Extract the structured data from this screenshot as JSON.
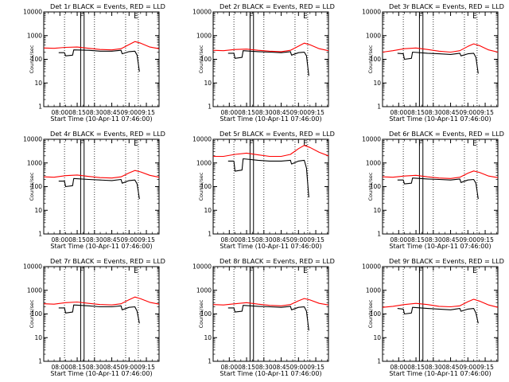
{
  "chart_data": [
    {
      "type": "line",
      "title": "Det 1r BLACK = Events, RED = LLD",
      "xlabel": "Start Time (10-Apr-11 07:46:00)",
      "ylabel": "Counts/sec",
      "yscale": "log",
      "ylim": [
        1,
        10000
      ],
      "xlim": [
        "07:46",
        "09:26"
      ],
      "xticks": [
        "08:00",
        "08:15",
        "08:30",
        "08:45",
        "09:00",
        "09:15"
      ],
      "yticks": [
        "1",
        "10",
        "100",
        "1000",
        "10000"
      ],
      "markers": [
        {
          "label": "F",
          "time": "08:19"
        },
        {
          "label": "E",
          "time": "09:06"
        }
      ],
      "vlines_solid": [
        "08:18",
        "08:21"
      ],
      "vlines_dotted": [
        "08:04",
        "08:30",
        "08:57",
        "09:08"
      ],
      "series": [
        {
          "color": "#ff0000",
          "x": [
            "07:46",
            "07:55",
            "08:05",
            "08:15",
            "08:25",
            "08:35",
            "08:45",
            "08:53",
            "09:00",
            "09:05",
            "09:10",
            "09:18",
            "09:26"
          ],
          "y": [
            300,
            290,
            320,
            330,
            290,
            260,
            250,
            280,
            420,
            560,
            480,
            330,
            280
          ]
        },
        {
          "color": "#000000",
          "x": [
            "07:59",
            "08:04",
            "08:05",
            "08:11",
            "08:12",
            "08:25",
            "08:35",
            "08:45",
            "08:53",
            "08:54",
            "09:00",
            "09:05",
            "09:07",
            "09:09"
          ],
          "y": [
            190,
            190,
            140,
            150,
            250,
            240,
            220,
            220,
            240,
            170,
            210,
            220,
            150,
            30
          ]
        }
      ]
    },
    {
      "type": "line",
      "title": "Det 2r BLACK = Events, RED = LLD",
      "xlabel": "Start Time (10-Apr-11 07:46:00)",
      "ylabel": "Counts/sec",
      "yscale": "log",
      "ylim": [
        1,
        10000
      ],
      "xlim": [
        "07:46",
        "09:26"
      ],
      "xticks": [
        "08:00",
        "08:15",
        "08:30",
        "08:45",
        "09:00",
        "09:15"
      ],
      "yticks": [
        "1",
        "10",
        "100",
        "1000",
        "10000"
      ],
      "markers": [
        {
          "label": "F",
          "time": "08:19"
        },
        {
          "label": "E",
          "time": "09:06"
        }
      ],
      "vlines_solid": [
        "08:18",
        "08:21"
      ],
      "vlines_dotted": [
        "08:04",
        "08:30",
        "08:57",
        "09:08"
      ],
      "series": [
        {
          "color": "#ff0000",
          "x": [
            "07:46",
            "07:55",
            "08:05",
            "08:15",
            "08:25",
            "08:35",
            "08:45",
            "08:53",
            "09:00",
            "09:05",
            "09:10",
            "09:18",
            "09:26"
          ],
          "y": [
            240,
            230,
            260,
            270,
            240,
            220,
            210,
            240,
            360,
            480,
            410,
            280,
            230
          ]
        },
        {
          "color": "#000000",
          "x": [
            "07:59",
            "08:04",
            "08:05",
            "08:11",
            "08:12",
            "08:25",
            "08:35",
            "08:45",
            "08:53",
            "08:54",
            "09:00",
            "09:05",
            "09:07",
            "09:09"
          ],
          "y": [
            180,
            180,
            110,
            120,
            230,
            210,
            200,
            190,
            210,
            150,
            190,
            200,
            140,
            20
          ]
        }
      ]
    },
    {
      "type": "line",
      "title": "Det 3r BLACK = Events, RED = LLD",
      "xlabel": "Start Time (10-Apr-11 07:46:00)",
      "ylabel": "Counts/sec",
      "yscale": "log",
      "ylim": [
        1,
        10000
      ],
      "xlim": [
        "07:46",
        "09:26"
      ],
      "xticks": [
        "08:00",
        "08:15",
        "08:30",
        "08:45",
        "09:00",
        "09:15"
      ],
      "yticks": [
        "1",
        "10",
        "100",
        "1000",
        "10000"
      ],
      "markers": [
        {
          "label": "F",
          "time": "08:19"
        },
        {
          "label": "E",
          "time": "09:06"
        }
      ],
      "vlines_solid": [
        "08:18",
        "08:21"
      ],
      "vlines_dotted": [
        "08:04",
        "08:30",
        "08:57",
        "09:08"
      ],
      "series": [
        {
          "color": "#ff0000",
          "x": [
            "07:46",
            "07:55",
            "08:05",
            "08:15",
            "08:25",
            "08:35",
            "08:45",
            "08:53",
            "09:00",
            "09:05",
            "09:10",
            "09:18",
            "09:26"
          ],
          "y": [
            200,
            230,
            280,
            300,
            260,
            220,
            200,
            230,
            350,
            450,
            380,
            250,
            200
          ]
        },
        {
          "color": "#000000",
          "x": [
            "07:59",
            "08:04",
            "08:05",
            "08:11",
            "08:12",
            "08:25",
            "08:35",
            "08:45",
            "08:53",
            "08:54",
            "09:00",
            "09:05",
            "09:07",
            "09:09"
          ],
          "y": [
            180,
            170,
            100,
            110,
            200,
            180,
            170,
            160,
            180,
            140,
            170,
            180,
            120,
            25
          ]
        }
      ]
    },
    {
      "type": "line",
      "title": "Det 4r BLACK = Events, RED = LLD",
      "xlabel": "Start Time (10-Apr-11 07:46:00)",
      "ylabel": "Counts/sec",
      "yscale": "log",
      "ylim": [
        1,
        10000
      ],
      "xlim": [
        "07:46",
        "09:26"
      ],
      "xticks": [
        "08:00",
        "08:15",
        "08:30",
        "08:45",
        "09:00",
        "09:15"
      ],
      "yticks": [
        "1",
        "10",
        "100",
        "1000",
        "10000"
      ],
      "markers": [
        {
          "label": "F",
          "time": "08:19"
        },
        {
          "label": "E",
          "time": "09:06"
        }
      ],
      "vlines_solid": [
        "08:18",
        "08:21"
      ],
      "vlines_dotted": [
        "08:04",
        "08:30",
        "08:57",
        "09:08"
      ],
      "series": [
        {
          "color": "#ff0000",
          "x": [
            "07:46",
            "07:55",
            "08:05",
            "08:15",
            "08:25",
            "08:35",
            "08:45",
            "08:53",
            "09:00",
            "09:05",
            "09:10",
            "09:18",
            "09:26"
          ],
          "y": [
            260,
            250,
            290,
            310,
            270,
            240,
            230,
            260,
            380,
            480,
            420,
            300,
            250
          ]
        },
        {
          "color": "#000000",
          "x": [
            "07:59",
            "08:04",
            "08:05",
            "08:11",
            "08:12",
            "08:25",
            "08:35",
            "08:45",
            "08:53",
            "08:54",
            "09:00",
            "09:05",
            "09:07",
            "09:09"
          ],
          "y": [
            170,
            170,
            100,
            110,
            220,
            200,
            190,
            180,
            200,
            140,
            180,
            190,
            130,
            30
          ]
        }
      ]
    },
    {
      "type": "line",
      "title": "Det 5r BLACK = Events, RED = LLD",
      "xlabel": "Start Time (10-Apr-11 07:46:00)",
      "ylabel": "Counts/sec",
      "yscale": "log",
      "ylim": [
        1,
        10000
      ],
      "xlim": [
        "07:46",
        "09:26"
      ],
      "xticks": [
        "08:00",
        "08:15",
        "08:30",
        "08:45",
        "09:00",
        "09:15"
      ],
      "yticks": [
        "1",
        "10",
        "100",
        "1000",
        "10000"
      ],
      "markers": [
        {
          "label": "F",
          "time": "08:19"
        },
        {
          "label": "E",
          "time": "09:06"
        }
      ],
      "vlines_solid": [
        "08:18",
        "08:21"
      ],
      "vlines_dotted": [
        "08:04",
        "08:30",
        "08:57",
        "09:08"
      ],
      "series": [
        {
          "color": "#ff0000",
          "x": [
            "07:46",
            "07:55",
            "08:05",
            "08:15",
            "08:25",
            "08:35",
            "08:45",
            "08:53",
            "09:00",
            "09:05",
            "09:10",
            "09:18",
            "09:26"
          ],
          "y": [
            1900,
            1900,
            2300,
            2600,
            2200,
            1900,
            1900,
            2300,
            4000,
            5500,
            4500,
            2800,
            2000
          ]
        },
        {
          "color": "#000000",
          "x": [
            "07:59",
            "08:04",
            "08:05",
            "08:11",
            "08:12",
            "08:25",
            "08:35",
            "08:45",
            "08:53",
            "08:54",
            "09:00",
            "09:05",
            "09:07",
            "09:09"
          ],
          "y": [
            1200,
            1200,
            450,
            500,
            1500,
            1300,
            1200,
            1200,
            1300,
            900,
            1200,
            1300,
            600,
            35
          ]
        }
      ]
    },
    {
      "type": "line",
      "title": "Det 6r BLACK = Events, RED = LLD",
      "xlabel": "Start Time (10-Apr-11 07:46:00)",
      "ylabel": "Counts/sec",
      "yscale": "log",
      "ylim": [
        1,
        10000
      ],
      "xlim": [
        "07:46",
        "09:26"
      ],
      "xticks": [
        "08:00",
        "08:15",
        "08:30",
        "08:45",
        "09:00",
        "09:15"
      ],
      "yticks": [
        "1",
        "10",
        "100",
        "1000",
        "10000"
      ],
      "markers": [
        {
          "label": "F",
          "time": "08:19"
        },
        {
          "label": "E",
          "time": "09:06"
        }
      ],
      "vlines_solid": [
        "08:18",
        "08:21"
      ],
      "vlines_dotted": [
        "08:04",
        "08:30",
        "08:57",
        "09:08"
      ],
      "series": [
        {
          "color": "#ff0000",
          "x": [
            "07:46",
            "07:55",
            "08:05",
            "08:15",
            "08:25",
            "08:35",
            "08:45",
            "08:53",
            "09:00",
            "09:05",
            "09:10",
            "09:18",
            "09:26"
          ],
          "y": [
            260,
            250,
            280,
            300,
            260,
            230,
            220,
            250,
            370,
            460,
            400,
            280,
            240
          ]
        },
        {
          "color": "#000000",
          "x": [
            "07:59",
            "08:04",
            "08:05",
            "08:11",
            "08:12",
            "08:25",
            "08:35",
            "08:45",
            "08:53",
            "08:54",
            "09:00",
            "09:05",
            "09:07",
            "09:09"
          ],
          "y": [
            190,
            190,
            130,
            140,
            230,
            210,
            200,
            190,
            210,
            150,
            190,
            200,
            140,
            30
          ]
        }
      ]
    },
    {
      "type": "line",
      "title": "Det 7r BLACK = Events, RED = LLD",
      "xlabel": "Start Time (10-Apr-11 07:46:00)",
      "ylabel": "Counts/sec",
      "yscale": "log",
      "ylim": [
        1,
        10000
      ],
      "xlim": [
        "07:46",
        "09:26"
      ],
      "xticks": [
        "08:00",
        "08:15",
        "08:30",
        "08:45",
        "09:00",
        "09:15"
      ],
      "yticks": [
        "1",
        "10",
        "100",
        "1000",
        "10000"
      ],
      "markers": [
        {
          "label": "F",
          "time": "08:19"
        },
        {
          "label": "E",
          "time": "09:06"
        }
      ],
      "vlines_solid": [
        "08:18",
        "08:21"
      ],
      "vlines_dotted": [
        "08:04",
        "08:30",
        "08:57",
        "09:08"
      ],
      "series": [
        {
          "color": "#ff0000",
          "x": [
            "07:46",
            "07:55",
            "08:05",
            "08:15",
            "08:25",
            "08:35",
            "08:45",
            "08:53",
            "09:00",
            "09:05",
            "09:10",
            "09:18",
            "09:26"
          ],
          "y": [
            270,
            260,
            300,
            320,
            280,
            250,
            240,
            270,
            400,
            520,
            440,
            310,
            260
          ]
        },
        {
          "color": "#000000",
          "x": [
            "07:59",
            "08:04",
            "08:05",
            "08:11",
            "08:12",
            "08:25",
            "08:35",
            "08:45",
            "08:53",
            "08:54",
            "09:00",
            "09:05",
            "09:07",
            "09:09"
          ],
          "y": [
            180,
            180,
            110,
            120,
            240,
            220,
            200,
            200,
            220,
            150,
            190,
            200,
            130,
            40
          ]
        }
      ]
    },
    {
      "type": "line",
      "title": "Det 8r BLACK = Events, RED = LLD",
      "xlabel": "Start Time (10-Apr-11 07:46:00)",
      "ylabel": "Counts/sec",
      "yscale": "log",
      "ylim": [
        1,
        10000
      ],
      "xlim": [
        "07:46",
        "09:26"
      ],
      "xticks": [
        "08:00",
        "08:15",
        "08:30",
        "08:45",
        "09:00",
        "09:15"
      ],
      "yticks": [
        "1",
        "10",
        "100",
        "1000",
        "10000"
      ],
      "markers": [
        {
          "label": "F",
          "time": "08:19"
        },
        {
          "label": "E",
          "time": "09:06"
        }
      ],
      "vlines_solid": [
        "08:18",
        "08:21"
      ],
      "vlines_dotted": [
        "08:04",
        "08:30",
        "08:57",
        "09:08"
      ],
      "series": [
        {
          "color": "#ff0000",
          "x": [
            "07:46",
            "07:55",
            "08:05",
            "08:15",
            "08:25",
            "08:35",
            "08:45",
            "08:53",
            "09:00",
            "09:05",
            "09:10",
            "09:18",
            "09:26"
          ],
          "y": [
            250,
            240,
            270,
            300,
            260,
            230,
            220,
            250,
            360,
            450,
            390,
            280,
            240
          ]
        },
        {
          "color": "#000000",
          "x": [
            "07:59",
            "08:04",
            "08:05",
            "08:11",
            "08:12",
            "08:25",
            "08:35",
            "08:45",
            "08:53",
            "08:54",
            "09:00",
            "09:05",
            "09:07",
            "09:09"
          ],
          "y": [
            180,
            180,
            120,
            130,
            230,
            210,
            200,
            190,
            210,
            150,
            190,
            200,
            130,
            20
          ]
        }
      ]
    },
    {
      "type": "line",
      "title": "Det 9r BLACK = Events, RED = LLD",
      "xlabel": "Start Time (10-Apr-11 07:46:00)",
      "ylabel": "Counts/sec",
      "yscale": "log",
      "ylim": [
        1,
        10000
      ],
      "xlim": [
        "07:46",
        "09:26"
      ],
      "xticks": [
        "08:00",
        "08:15",
        "08:30",
        "08:45",
        "09:00",
        "09:15"
      ],
      "yticks": [
        "1",
        "10",
        "100",
        "1000",
        "10000"
      ],
      "markers": [
        {
          "label": "F",
          "time": "08:19"
        },
        {
          "label": "E",
          "time": "09:06"
        }
      ],
      "vlines_solid": [
        "08:18",
        "08:21"
      ],
      "vlines_dotted": [
        "08:04",
        "08:30",
        "08:57",
        "09:08"
      ],
      "series": [
        {
          "color": "#ff0000",
          "x": [
            "07:46",
            "07:55",
            "08:05",
            "08:15",
            "08:25",
            "08:35",
            "08:45",
            "08:53",
            "09:00",
            "09:05",
            "09:10",
            "09:18",
            "09:26"
          ],
          "y": [
            190,
            210,
            250,
            280,
            250,
            210,
            200,
            220,
            330,
            420,
            350,
            240,
            190
          ]
        },
        {
          "color": "#000000",
          "x": [
            "07:59",
            "08:04",
            "08:05",
            "08:11",
            "08:12",
            "08:25",
            "08:35",
            "08:45",
            "08:53",
            "08:54",
            "09:00",
            "09:05",
            "09:07",
            "09:09"
          ],
          "y": [
            170,
            160,
            100,
            110,
            190,
            170,
            160,
            150,
            170,
            130,
            160,
            170,
            110,
            40
          ]
        }
      ]
    }
  ]
}
